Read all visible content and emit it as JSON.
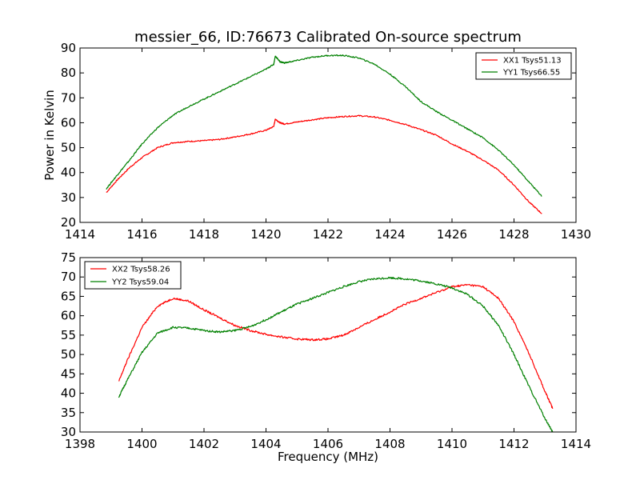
{
  "chart_data": [
    {
      "type": "line",
      "title": "messier_66, ID:76673 Calibrated On-source spectrum",
      "xlabel": "",
      "ylabel": "Power in Kelvin",
      "xlim": [
        1414,
        1430
      ],
      "ylim": [
        20,
        90
      ],
      "xticks": [
        1414,
        1416,
        1418,
        1420,
        1422,
        1424,
        1426,
        1428,
        1430
      ],
      "yticks": [
        20,
        30,
        40,
        50,
        60,
        70,
        80,
        90
      ],
      "legend": "top-right",
      "series": [
        {
          "name": "XX1 Tsys51.13",
          "color": "#ff0000",
          "x": [
            1414.85,
            1415.2,
            1415.6,
            1416.0,
            1416.5,
            1417.0,
            1417.5,
            1418.0,
            1418.5,
            1419.0,
            1419.5,
            1420.0,
            1420.25,
            1420.3,
            1420.45,
            1420.6,
            1421.0,
            1421.5,
            1422.0,
            1422.5,
            1423.0,
            1423.5,
            1424.0,
            1424.5,
            1425.0,
            1425.5,
            1426.0,
            1426.5,
            1427.0,
            1427.5,
            1428.0,
            1428.5,
            1428.9
          ],
          "y": [
            32,
            37,
            42,
            46,
            50,
            52,
            52.5,
            52.8,
            53.3,
            54.3,
            55.5,
            57,
            58.5,
            61.5,
            60,
            59.5,
            60.3,
            61.2,
            62,
            62.5,
            62.8,
            62.3,
            61,
            59.3,
            57.2,
            55,
            51.5,
            48.5,
            45,
            41,
            35,
            28,
            23.5
          ]
        },
        {
          "name": "YY1 Tsys66.55",
          "color": "#008000",
          "x": [
            1414.85,
            1415.2,
            1415.6,
            1416.0,
            1416.5,
            1417.0,
            1417.5,
            1418.0,
            1418.5,
            1419.0,
            1419.5,
            1420.0,
            1420.25,
            1420.3,
            1420.45,
            1420.6,
            1421.0,
            1421.5,
            1422.0,
            1422.5,
            1423.0,
            1423.5,
            1424.0,
            1424.5,
            1425.0,
            1425.5,
            1426.0,
            1426.5,
            1427.0,
            1427.5,
            1428.0,
            1428.5,
            1428.9
          ],
          "y": [
            33.5,
            39,
            45,
            51.5,
            58,
            63,
            66.5,
            69.5,
            72.5,
            75.5,
            78.5,
            81.5,
            83.5,
            86.8,
            84.5,
            84,
            85,
            86.3,
            87,
            87,
            86,
            83.5,
            79.5,
            74.5,
            68.5,
            64.5,
            61,
            57.5,
            54,
            49,
            43,
            36,
            30.5
          ]
        }
      ]
    },
    {
      "type": "line",
      "title": "",
      "xlabel": "Frequency (MHz)",
      "ylabel": "",
      "xlim": [
        1398,
        1414
      ],
      "ylim": [
        30,
        75
      ],
      "xticks": [
        1398,
        1400,
        1402,
        1404,
        1406,
        1408,
        1410,
        1412,
        1414
      ],
      "yticks": [
        30,
        35,
        40,
        45,
        50,
        55,
        60,
        65,
        70,
        75
      ],
      "legend": "top-left",
      "series": [
        {
          "name": "XX2 Tsys58.26",
          "color": "#ff0000",
          "x": [
            1399.25,
            1399.5,
            1400.0,
            1400.5,
            1401.0,
            1401.5,
            1402.0,
            1402.5,
            1403.0,
            1403.5,
            1404.0,
            1404.5,
            1405.0,
            1405.5,
            1406.0,
            1406.5,
            1407.0,
            1407.5,
            1408.0,
            1408.5,
            1409.0,
            1409.5,
            1410.0,
            1410.5,
            1411.0,
            1411.5,
            1412.0,
            1412.5,
            1413.0,
            1413.25
          ],
          "y": [
            43,
            48,
            57,
            62.5,
            64.5,
            63.8,
            61.5,
            59.5,
            57.5,
            56.2,
            55.2,
            54.5,
            54,
            53.8,
            54,
            55,
            57,
            59,
            61,
            63,
            64.5,
            66,
            67.5,
            68,
            67.5,
            64.5,
            58.5,
            50,
            40.5,
            36
          ]
        },
        {
          "name": "YY2 Tsys59.04",
          "color": "#008000",
          "x": [
            1399.25,
            1399.5,
            1400.0,
            1400.5,
            1401.0,
            1401.5,
            1402.0,
            1402.5,
            1403.0,
            1403.5,
            1404.0,
            1404.5,
            1405.0,
            1405.5,
            1406.0,
            1406.5,
            1407.0,
            1407.5,
            1408.0,
            1408.5,
            1409.0,
            1409.5,
            1410.0,
            1410.5,
            1411.0,
            1411.5,
            1412.0,
            1412.5,
            1413.0,
            1413.25
          ],
          "y": [
            39,
            43,
            50.5,
            55.5,
            57,
            56.8,
            56.2,
            55.8,
            56.2,
            57.2,
            59,
            61,
            63,
            64.5,
            66,
            67.5,
            68.8,
            69.5,
            69.8,
            69.5,
            69,
            68.2,
            67.2,
            65.5,
            62.5,
            57.5,
            50,
            41.5,
            33.5,
            30
          ]
        }
      ]
    }
  ]
}
